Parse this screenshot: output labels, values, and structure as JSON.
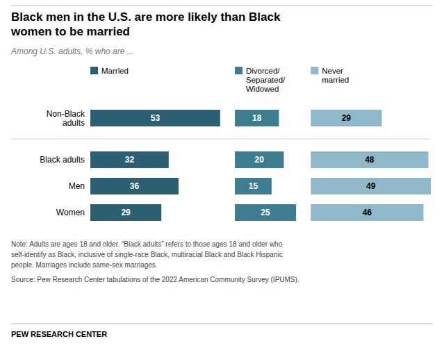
{
  "chart_data": {
    "type": "bar",
    "orientation": "horizontal",
    "title": "Black men in the U.S. are more likely than Black\nwomen to be married",
    "subtitle": "Among U.S. adults, % who are ...",
    "categories": [
      "Non-Black\nadults",
      "Black adults",
      "Men",
      "Women"
    ],
    "series": [
      {
        "name": "Married",
        "color": "#2d5f72",
        "values": [
          53,
          32,
          36,
          29
        ]
      },
      {
        "name": "Divorced/\nSeparated/\nWidowed",
        "color": "#3d7d8f",
        "values": [
          18,
          20,
          15,
          25
        ]
      },
      {
        "name": "Never\nmarried",
        "color": "#8fb8c8",
        "values": [
          29,
          48,
          49,
          46
        ]
      }
    ],
    "data_labels": true,
    "tick_labels": false,
    "grid": false,
    "legend": "top",
    "notes": [
      "Note: Adults are ages 18 and older. “Black adults” refers to those ages 18 and older who",
      "self-identify as Black, inclusive of single-race Black, multiracial Black and Black Hispanic",
      "people. Marriages include same-sex marriages."
    ],
    "source": "Source: Pew Research Center tabulations of the 2022 American Community Survey (IPUMS).",
    "footer": "PEW RESEARCH CENTER"
  }
}
